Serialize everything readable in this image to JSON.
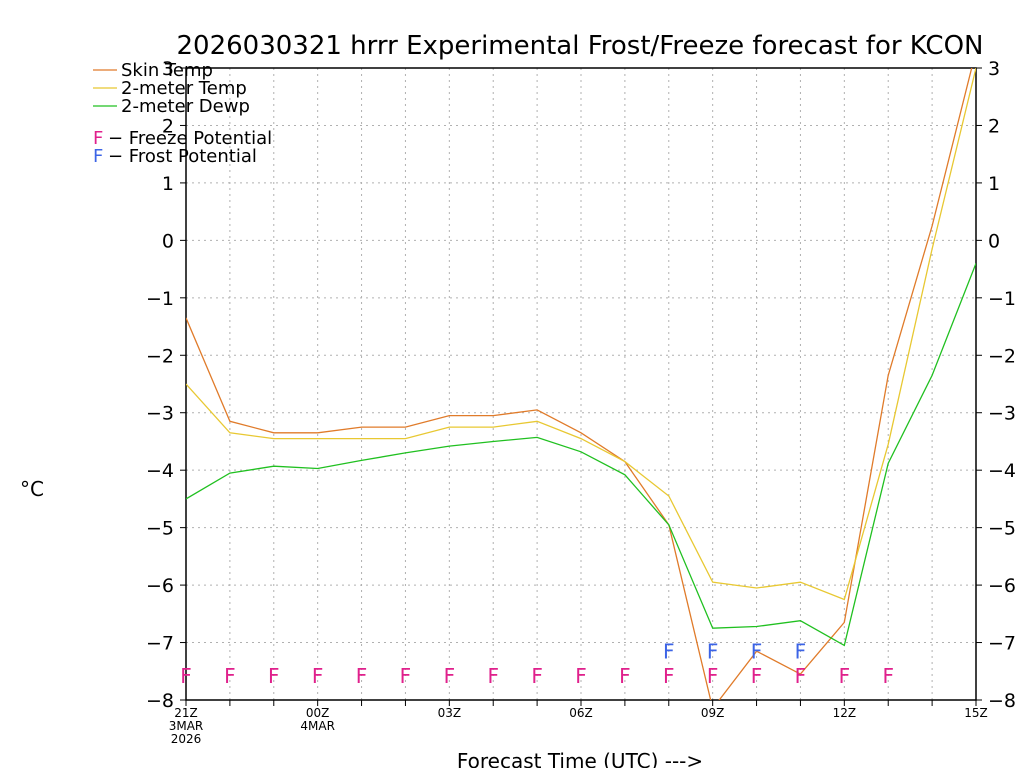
{
  "chart_data": {
    "type": "line",
    "title": "2026030321 hrrr Experimental Frost/Freeze forecast for KCON",
    "xlabel": "Forecast Time (UTC) --->",
    "ylabel": "°C",
    "ylim": [
      -8,
      3
    ],
    "yticks_left": [
      "−8",
      "−7",
      "−6",
      "−5",
      "−4",
      "−3",
      "−2",
      "−1",
      "0",
      "1",
      "2",
      "3"
    ],
    "yticks_right": [
      "−8",
      "−7",
      "−6",
      "−5",
      "−4",
      "−3",
      "−2",
      "−1",
      "0",
      "1",
      "2",
      "3"
    ],
    "x_hours": [
      0,
      1,
      2,
      3,
      4,
      5,
      6,
      7,
      8,
      9,
      10,
      11,
      12,
      13,
      14,
      15,
      16,
      17,
      18
    ],
    "x_tick_labels": [
      {
        "hour": 0,
        "lines": [
          "21Z",
          "3MAR",
          "2026"
        ]
      },
      {
        "hour": 3,
        "lines": [
          "00Z",
          "4MAR"
        ]
      },
      {
        "hour": 6,
        "lines": [
          "03Z"
        ]
      },
      {
        "hour": 9,
        "lines": [
          "06Z"
        ]
      },
      {
        "hour": 12,
        "lines": [
          "09Z"
        ]
      },
      {
        "hour": 15,
        "lines": [
          "12Z"
        ]
      },
      {
        "hour": 18,
        "lines": [
          "15Z"
        ]
      }
    ],
    "grid": true,
    "legend": [
      {
        "label": "Skin Temp",
        "color": "#e07b2a"
      },
      {
        "label": "2-meter Temp",
        "color": "#e8c832"
      },
      {
        "label": "2-meter Dewp",
        "color": "#20c020"
      }
    ],
    "flag_legend": [
      {
        "glyph": "F",
        "text": " − Freeze Potential",
        "color": "#e0208c"
      },
      {
        "glyph": "F",
        "text": " − Frost Potential",
        "color": "#3c64e6"
      }
    ],
    "series": [
      {
        "name": "Skin Temp",
        "color": "#e07b2a",
        "values": [
          -1.35,
          -3.15,
          -3.35,
          -3.35,
          -3.25,
          -3.25,
          -3.05,
          -3.05,
          -2.95,
          -3.35,
          -3.85,
          -4.95,
          -8.15,
          -7.15,
          -7.55,
          -6.65,
          -2.35,
          0.25,
          3.3
        ]
      },
      {
        "name": "2-meter Temp",
        "color": "#e8c832",
        "values": [
          -2.5,
          -3.35,
          -3.45,
          -3.45,
          -3.45,
          -3.45,
          -3.25,
          -3.25,
          -3.15,
          -3.45,
          -3.85,
          -4.45,
          -5.95,
          -6.05,
          -5.95,
          -6.25,
          -3.55,
          -0.15,
          3.0
        ]
      },
      {
        "name": "2-meter Dewp",
        "color": "#20c020",
        "values": [
          -4.5,
          -4.05,
          -3.93,
          -3.97,
          -3.83,
          -3.7,
          -3.58,
          -3.5,
          -3.43,
          -3.68,
          -4.08,
          -4.95,
          -6.75,
          -6.72,
          -6.62,
          -7.05,
          -3.88,
          -2.35,
          -0.4
        ]
      }
    ],
    "freeze_flags": [
      0,
      1,
      2,
      3,
      4,
      5,
      6,
      7,
      8,
      9,
      10,
      11,
      12,
      13,
      14,
      15,
      16
    ],
    "frost_flags": [
      11,
      12,
      13,
      14
    ],
    "flag_glyph": "F",
    "freeze_color": "#e0208c",
    "frost_color": "#3c64e6"
  }
}
